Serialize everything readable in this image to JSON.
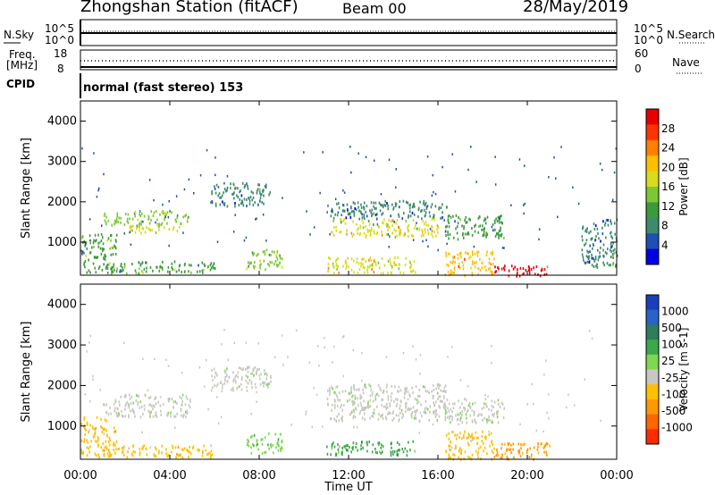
{
  "header": {
    "station": "Zhongshan Station (fitACF)",
    "beam": "Beam 00",
    "date": "28/May/2019"
  },
  "nsky_panel": {
    "left_label": "N.Sky",
    "right_label": "N.Search",
    "left_ticks": [
      "10^5",
      "10^0"
    ],
    "right_ticks": [
      "10^5",
      "10^0"
    ]
  },
  "freq_panel": {
    "left_label_1": "Freq.",
    "left_label_2": "[MHz]",
    "right_label": "Nave",
    "left_ticks": [
      "18",
      "8"
    ],
    "right_ticks": [
      "60",
      "0"
    ]
  },
  "cpid": {
    "label": "CPID",
    "text": "normal (fast stereo) 153"
  },
  "chart_data": [
    {
      "type": "heatmap",
      "title": "Power",
      "ylabel": "Slant Range [km]",
      "xlabel": "",
      "ylim": [
        180,
        4500
      ],
      "xlim_hours": [
        0,
        24
      ],
      "x_ticks": [
        "00:00",
        "04:00",
        "08:00",
        "12:00",
        "16:00",
        "20:00",
        "00:00"
      ],
      "y_ticks": [
        "1000",
        "2000",
        "3000",
        "4000"
      ],
      "colorbar": {
        "label": "Power [dB]",
        "ticks": [
          "28",
          "24",
          "20",
          "16",
          "12",
          "8",
          "4"
        ],
        "colors": [
          "#e60000",
          "#ff3300",
          "#ff8000",
          "#ffbf00",
          "#d8dc1a",
          "#7cc832",
          "#3b9b3b",
          "#3d8a6e",
          "#1e4fb5",
          "#0000e6"
        ]
      },
      "regions": [
        {
          "t0": 1.0,
          "t1": 4.9,
          "r0": 1450,
          "r1": 1800,
          "value": 14
        },
        {
          "t0": 1.8,
          "t1": 4.4,
          "r0": 1250,
          "r1": 1450,
          "value": 17
        },
        {
          "t0": 5.8,
          "t1": 8.5,
          "r0": 1900,
          "r1": 2500,
          "value": 10
        },
        {
          "t0": 11.0,
          "t1": 16.4,
          "r0": 1600,
          "r1": 2050,
          "value": 9
        },
        {
          "t0": 11.2,
          "t1": 16.0,
          "r0": 1150,
          "r1": 1600,
          "value": 17
        },
        {
          "t0": 16.3,
          "t1": 19.0,
          "r0": 1100,
          "r1": 1700,
          "value": 12
        },
        {
          "t0": 0.0,
          "t1": 1.6,
          "r0": 250,
          "r1": 1250,
          "value": 13
        },
        {
          "t0": 1.6,
          "t1": 6.0,
          "r0": 250,
          "r1": 550,
          "value": 13
        },
        {
          "t0": 7.4,
          "t1": 9.0,
          "r0": 350,
          "r1": 850,
          "value": 14
        },
        {
          "t0": 11.0,
          "t1": 15.0,
          "r0": 250,
          "r1": 650,
          "value": 18
        },
        {
          "t0": 16.3,
          "t1": 18.5,
          "r0": 200,
          "r1": 800,
          "value": 20
        },
        {
          "t0": 18.5,
          "t1": 21.0,
          "r0": 180,
          "r1": 450,
          "value": 27
        },
        {
          "t0": 22.4,
          "t1": 24.0,
          "r0": 400,
          "r1": 1600,
          "value": 10
        }
      ]
    },
    {
      "type": "heatmap",
      "title": "Velocity",
      "ylabel": "Slant Range [km]",
      "xlabel": "Time UT",
      "ylim": [
        180,
        4500
      ],
      "xlim_hours": [
        0,
        24
      ],
      "x_ticks": [
        "00:00",
        "04:00",
        "08:00",
        "12:00",
        "16:00",
        "20:00",
        "00:00"
      ],
      "y_ticks": [
        "1000",
        "2000",
        "3000",
        "4000"
      ],
      "colorbar": {
        "label": "Velocity [m s-1]",
        "ticks": [
          "1000",
          "500",
          "100",
          "25",
          "-25",
          "-100",
          "-500",
          "-1000"
        ],
        "colors": [
          "#1a3fbd",
          "#2a62c8",
          "#2e7d5b",
          "#3aa84a",
          "#7ed850",
          "#c8c8c0",
          "#ffc000",
          "#ff9900",
          "#ff6600",
          "#ff2a00"
        ]
      },
      "regions": [
        {
          "t0": 1.0,
          "t1": 4.9,
          "r0": 1250,
          "r1": 1800,
          "value": 0
        },
        {
          "t0": 5.8,
          "t1": 8.5,
          "r0": 1900,
          "r1": 2500,
          "value": 0
        },
        {
          "t0": 11.0,
          "t1": 16.4,
          "r0": 1150,
          "r1": 2050,
          "value": 0
        },
        {
          "t0": 16.3,
          "t1": 19.0,
          "r0": 1100,
          "r1": 1700,
          "value": 0
        },
        {
          "t0": 0.0,
          "t1": 1.6,
          "r0": 250,
          "r1": 1250,
          "value": -300
        },
        {
          "t0": 1.6,
          "t1": 6.0,
          "r0": 250,
          "r1": 550,
          "value": -300
        },
        {
          "t0": 7.4,
          "t1": 9.0,
          "r0": 350,
          "r1": 850,
          "value": 200
        },
        {
          "t0": 11.0,
          "t1": 15.0,
          "r0": 300,
          "r1": 650,
          "value": 300
        },
        {
          "t0": 16.3,
          "t1": 18.5,
          "r0": 200,
          "r1": 900,
          "value": -200
        },
        {
          "t0": 18.5,
          "t1": 21.0,
          "r0": 180,
          "r1": 600,
          "value": -400
        }
      ]
    }
  ]
}
